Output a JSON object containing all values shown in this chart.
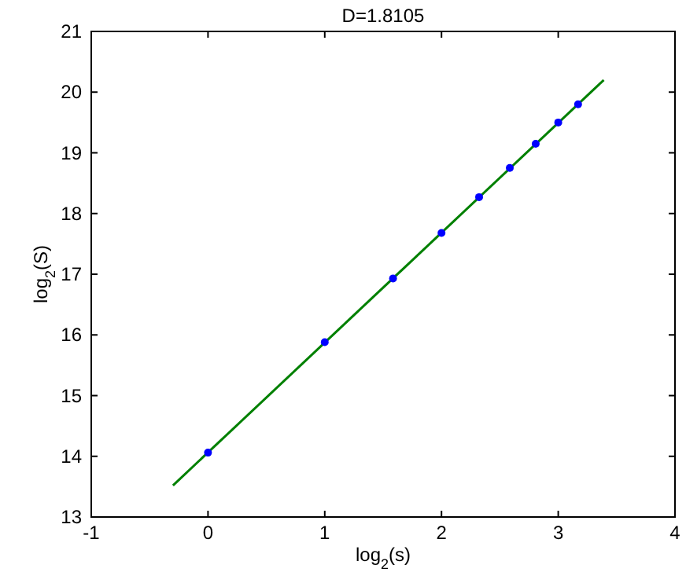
{
  "chart_data": {
    "type": "scatter",
    "title": "D=1.8105",
    "xlabel": "log$_{2}$(s)",
    "ylabel": "log$_{2}$(S)",
    "xlim": [
      -1,
      4
    ],
    "ylim": [
      13,
      21
    ],
    "xticks": [
      -1,
      0,
      1,
      2,
      3,
      4
    ],
    "yticks": [
      13,
      14,
      15,
      16,
      17,
      18,
      19,
      20,
      21
    ],
    "grid": false,
    "marker": "circle",
    "series": [
      {
        "type": "line",
        "color": "#008000",
        "x": [
          -0.3,
          3.39
        ],
        "values": [
          13.52,
          20.2
        ],
        "marker": "none"
      },
      {
        "color": "#0000ff",
        "x": [
          0,
          1,
          1.585,
          2,
          2.322,
          2.585,
          2.807,
          3,
          3.17
        ],
        "values": [
          14.06,
          15.88,
          16.93,
          17.68,
          18.27,
          18.75,
          19.15,
          19.5,
          19.8
        ]
      }
    ]
  }
}
